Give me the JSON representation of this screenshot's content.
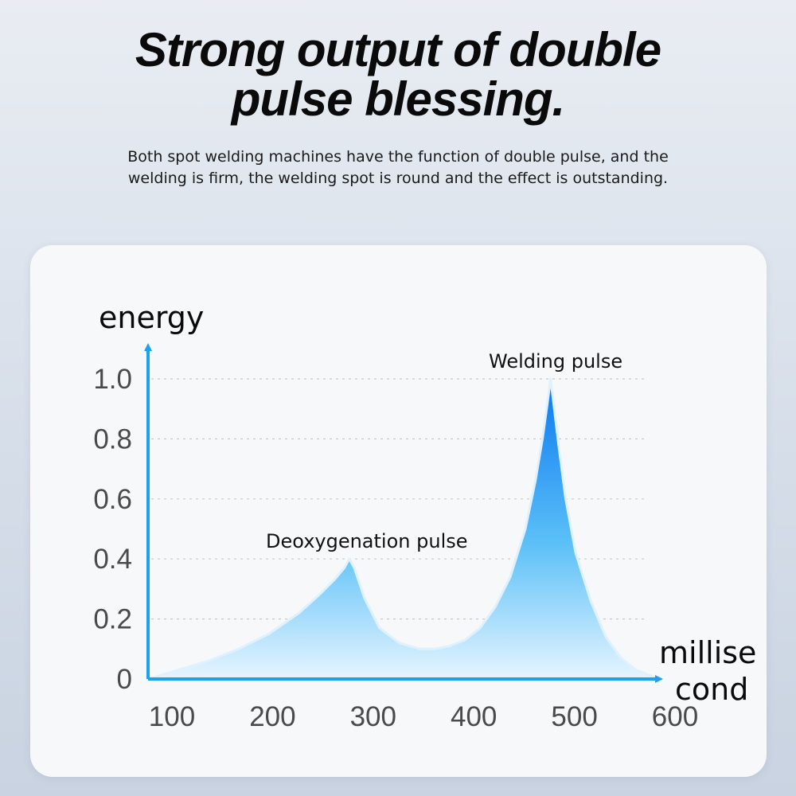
{
  "header": {
    "title_line1": "Strong output of double",
    "title_line2": "pulse blessing.",
    "subtitle": "Both spot welding machines have the function of double pulse, and the welding is firm, the welding spot is round and the effect is outstanding."
  },
  "colors": {
    "axis": "#1ea0f0",
    "fill_top": "#0a78f0",
    "fill_bottom": "#e6f5ff",
    "grid": "#c9c9c9"
  },
  "chart_data": {
    "type": "area",
    "title": "",
    "ylabel": "energy",
    "xlabel_lines": [
      "millise",
      "cond"
    ],
    "x_ticks": [
      "100",
      "200",
      "300",
      "400",
      "500",
      "600"
    ],
    "y_ticks": [
      "0",
      "0.2",
      "0.4",
      "0.6",
      "0.8",
      "1.0"
    ],
    "xlim": [
      100,
      610
    ],
    "ylim": [
      0,
      1.0
    ],
    "grid": true,
    "series": [
      {
        "name": "energy",
        "x": [
          100,
          130,
          160,
          190,
          220,
          250,
          270,
          285,
          295,
          300,
          305,
          315,
          330,
          350,
          370,
          385,
          400,
          415,
          430,
          445,
          460,
          475,
          485,
          492,
          497,
          500,
          503,
          508,
          515,
          525,
          540,
          555,
          570,
          585,
          600,
          610
        ],
        "y": [
          0.0,
          0.03,
          0.06,
          0.1,
          0.15,
          0.22,
          0.28,
          0.33,
          0.37,
          0.4,
          0.37,
          0.27,
          0.17,
          0.12,
          0.1,
          0.1,
          0.11,
          0.13,
          0.17,
          0.24,
          0.34,
          0.5,
          0.66,
          0.8,
          0.92,
          1.0,
          0.92,
          0.78,
          0.6,
          0.42,
          0.26,
          0.14,
          0.07,
          0.03,
          0.01,
          0.0
        ]
      }
    ],
    "annotations": [
      {
        "text": "Deoxygenation pulse",
        "x": 300,
        "y": 0.4
      },
      {
        "text": "Welding pulse",
        "x": 500,
        "y": 1.0
      }
    ]
  }
}
